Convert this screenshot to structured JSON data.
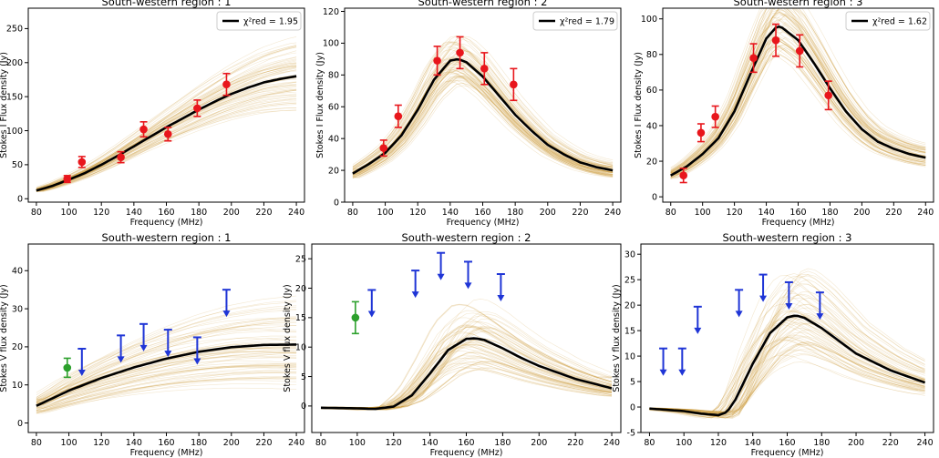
{
  "chart_data": [
    {
      "type": "line",
      "title": "South-western region : 1",
      "xlabel": "Frequency (MHz)",
      "ylabel": "Stokes I Flux density (Jy)",
      "xlim": [
        75,
        245
      ],
      "ylim": [
        -5,
        280
      ],
      "xticks": [
        80,
        100,
        120,
        140,
        160,
        180,
        200,
        220,
        240
      ],
      "yticks": [
        0,
        50,
        100,
        150,
        200,
        250
      ],
      "legend": {
        "label": "χ²red = 1.95",
        "position": "top-right"
      },
      "grid": false,
      "model_fit": {
        "name": "",
        "x": [
          80,
          90,
          100,
          110,
          120,
          130,
          140,
          150,
          160,
          170,
          180,
          190,
          200,
          210,
          220,
          230,
          240
        ],
        "y": [
          12,
          19,
          28,
          38,
          50,
          63,
          77,
          91,
          105,
          118,
          131,
          143,
          154,
          163,
          171,
          176,
          180
        ]
      },
      "data_points": {
        "x": [
          99,
          108,
          132,
          146,
          161,
          179,
          197
        ],
        "y": [
          29,
          54,
          61,
          102,
          95,
          133,
          168
        ],
        "err": [
          5,
          8,
          8,
          11,
          10,
          12,
          16
        ],
        "color": "#e8161c"
      },
      "upper_limits": {
        "x": [],
        "y": []
      },
      "detections": {
        "x": [],
        "y": [],
        "err": []
      }
    },
    {
      "type": "line",
      "title": "South-western region : 2",
      "xlabel": "Frequency (MHz)",
      "ylabel": "Stokes I Flux density (Jy)",
      "xlim": [
        75,
        245
      ],
      "ylim": [
        0,
        122
      ],
      "xticks": [
        80,
        100,
        120,
        140,
        160,
        180,
        200,
        220,
        240
      ],
      "yticks": [
        0,
        20,
        40,
        60,
        80,
        100,
        120
      ],
      "legend": {
        "label": "χ²red = 1.79",
        "position": "top-right"
      },
      "grid": false,
      "model_fit": {
        "name": "",
        "x": [
          80,
          90,
          100,
          110,
          120,
          130,
          140,
          145,
          150,
          160,
          170,
          180,
          190,
          200,
          210,
          220,
          230,
          240
        ],
        "y": [
          18,
          24,
          31,
          42,
          58,
          77,
          89,
          90,
          88,
          79,
          67,
          55,
          45,
          36,
          30,
          25,
          22,
          20
        ]
      },
      "data_points": {
        "x": [
          99,
          108,
          132,
          146,
          161,
          179
        ],
        "y": [
          34,
          54,
          89,
          94,
          84,
          74
        ],
        "err": [
          5,
          7,
          9,
          10,
          10,
          10
        ],
        "color": "#e8161c"
      },
      "upper_limits": {
        "x": [],
        "y": []
      },
      "detections": {
        "x": [],
        "y": [],
        "err": []
      }
    },
    {
      "type": "line",
      "title": "South-western region : 3",
      "xlabel": "Frequency (MHz)",
      "ylabel": "Stokes I Flux density (Jy)",
      "xlim": [
        75,
        245
      ],
      "ylim": [
        -3,
        106
      ],
      "xticks": [
        80,
        100,
        120,
        140,
        160,
        180,
        200,
        220,
        240
      ],
      "yticks": [
        0,
        20,
        40,
        60,
        80,
        100
      ],
      "legend": {
        "label": "χ²red = 1.62",
        "position": "top-right"
      },
      "grid": false,
      "model_fit": {
        "name": "",
        "x": [
          80,
          90,
          100,
          110,
          120,
          130,
          140,
          147,
          150,
          160,
          170,
          180,
          190,
          200,
          210,
          220,
          230,
          240
        ],
        "y": [
          12,
          17,
          24,
          33,
          48,
          69,
          89,
          96,
          95,
          88,
          75,
          61,
          48,
          38,
          31,
          27,
          24,
          22
        ]
      },
      "data_points": {
        "x": [
          88,
          99,
          108,
          132,
          146,
          161,
          179
        ],
        "y": [
          12,
          36,
          45,
          78,
          88,
          82,
          57
        ],
        "err": [
          4,
          5,
          6,
          8,
          9,
          9,
          8
        ],
        "color": "#e8161c"
      },
      "upper_limits": {
        "x": [],
        "y": []
      },
      "detections": {
        "x": [],
        "y": [],
        "err": []
      }
    },
    {
      "type": "line",
      "title": "South-western region : 1",
      "xlabel": "Frequency (MHz)",
      "ylabel": "Stokes V flux density (Jy)",
      "xlim": [
        75,
        245
      ],
      "ylim": [
        -2.5,
        47
      ],
      "xticks": [
        80,
        100,
        120,
        140,
        160,
        180,
        200,
        220,
        240
      ],
      "yticks": [
        0,
        10,
        20,
        30,
        40
      ],
      "legend": null,
      "grid": false,
      "model_fit": {
        "name": "",
        "x": [
          80,
          100,
          120,
          140,
          160,
          180,
          200,
          220,
          240
        ],
        "y": [
          4.5,
          8.5,
          11.8,
          14.6,
          16.9,
          18.7,
          19.9,
          20.5,
          20.6
        ]
      },
      "data_points": {
        "x": [],
        "y": [],
        "err": []
      },
      "upper_limits": {
        "x": [
          108,
          132,
          146,
          161,
          179,
          197
        ],
        "y": [
          19.5,
          23,
          26,
          24.5,
          22.5,
          35
        ],
        "color": "#1f35d6"
      },
      "detections": {
        "x": [
          99
        ],
        "y": [
          14.5
        ],
        "err": [
          2.5
        ],
        "color": "#2ca02c"
      }
    },
    {
      "type": "line",
      "title": "South-western region : 2",
      "xlabel": "Frequency (MHz)",
      "ylabel": "Stokes V flux density (Jy)",
      "xlim": [
        75,
        245
      ],
      "ylim": [
        -4.5,
        27.5
      ],
      "xticks": [
        80,
        100,
        120,
        140,
        160,
        180,
        200,
        220,
        240
      ],
      "yticks": [
        0,
        5,
        10,
        15,
        20,
        25
      ],
      "legend": null,
      "grid": false,
      "model_fit": {
        "name": "",
        "x": [
          80,
          100,
          110,
          120,
          130,
          140,
          150,
          160,
          165,
          170,
          180,
          190,
          200,
          220,
          240
        ],
        "y": [
          -0.3,
          -0.4,
          -0.5,
          -0.1,
          1.8,
          5.5,
          9.5,
          11.4,
          11.5,
          11.2,
          9.8,
          8.2,
          6.8,
          4.6,
          3.0
        ]
      },
      "data_points": {
        "x": [],
        "y": [],
        "err": []
      },
      "upper_limits": {
        "x": [
          108,
          132,
          146,
          161,
          179
        ],
        "y": [
          19.7,
          23,
          26,
          24.5,
          22.4
        ],
        "color": "#1f35d6"
      },
      "detections": {
        "x": [
          99
        ],
        "y": [
          15
        ],
        "err": [
          2.7
        ],
        "color": "#2ca02c"
      }
    },
    {
      "type": "line",
      "title": "South-western region : 3",
      "xlabel": "Frequency (MHz)",
      "ylabel": "Stokes V flux density (Jy)",
      "xlim": [
        75,
        245
      ],
      "ylim": [
        -5,
        32
      ],
      "xticks": [
        80,
        100,
        120,
        140,
        160,
        180,
        200,
        220,
        240
      ],
      "yticks": [
        -5,
        0,
        5,
        10,
        15,
        20,
        25,
        30
      ],
      "legend": null,
      "grid": false,
      "model_fit": {
        "name": "",
        "x": [
          80,
          100,
          110,
          120,
          125,
          130,
          140,
          150,
          160,
          165,
          170,
          180,
          190,
          200,
          220,
          240
        ],
        "y": [
          -0.3,
          -0.8,
          -1.3,
          -1.6,
          -1.0,
          1.5,
          8.5,
          14.5,
          17.6,
          18.0,
          17.5,
          15.5,
          13.0,
          10.5,
          7.2,
          4.8
        ]
      },
      "data_points": {
        "x": [],
        "y": [],
        "err": []
      },
      "upper_limits": {
        "x": [
          88,
          99,
          108,
          132,
          146,
          161,
          179
        ],
        "y": [
          11.5,
          11.5,
          19.7,
          23,
          26,
          24.5,
          22.5
        ],
        "color": "#1f35d6"
      },
      "detections": {
        "x": [],
        "y": [],
        "err": []
      }
    }
  ]
}
